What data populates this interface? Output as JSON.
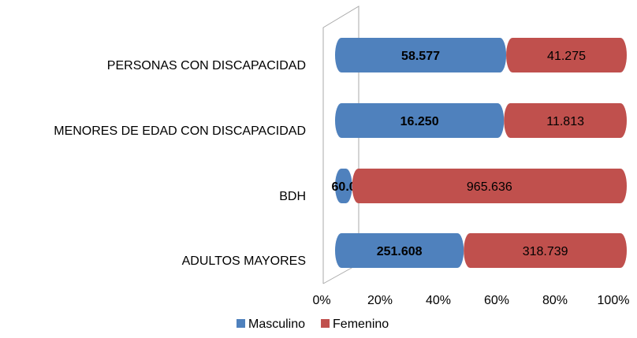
{
  "chart_data": {
    "type": "bar",
    "orientation": "horizontal",
    "stacking": "percent",
    "categories": [
      "PERSONAS CON DISCAPACIDAD",
      "MENORES DE EDAD CON DISCAPACIDAD",
      "BDH",
      "ADULTOS MAYORES"
    ],
    "series": [
      {
        "name": "Masculino",
        "color": "#4f81bd",
        "values": [
          58577,
          16250,
          60066,
          251608
        ],
        "value_labels": [
          "58.577",
          "16.250",
          "60.066",
          "251.608"
        ]
      },
      {
        "name": "Femenino",
        "color": "#c0504d",
        "values": [
          41275,
          11813,
          965636,
          318739
        ],
        "value_labels": [
          "41.275",
          "11.813",
          "965.636",
          "318.739"
        ]
      }
    ],
    "xlim": [
      0,
      100
    ],
    "xticks": [
      {
        "value": 0,
        "label": "0%"
      },
      {
        "value": 20,
        "label": "20%"
      },
      {
        "value": 40,
        "label": "40%"
      },
      {
        "value": 60,
        "label": "60%"
      },
      {
        "value": 80,
        "label": "80%"
      },
      {
        "value": 100,
        "label": "100%"
      }
    ],
    "legend": "bottom"
  }
}
